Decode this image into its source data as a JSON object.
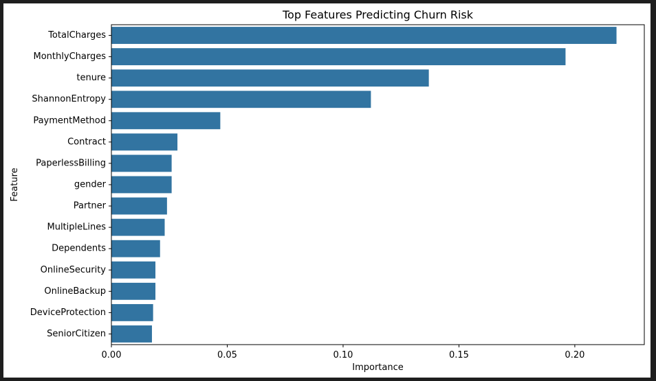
{
  "chart_data": {
    "type": "bar",
    "orientation": "horizontal",
    "title": "Top Features Predicting Churn Risk",
    "xlabel": "Importance",
    "ylabel": "Feature",
    "categories": [
      "TotalCharges",
      "MonthlyCharges",
      "tenure",
      "ShannonEntropy",
      "PaymentMethod",
      "Contract",
      "PaperlessBilling",
      "gender",
      "Partner",
      "MultipleLines",
      "Dependents",
      "OnlineSecurity",
      "OnlineBackup",
      "DeviceProtection",
      "SeniorCitizen"
    ],
    "values": [
      0.218,
      0.196,
      0.137,
      0.112,
      0.047,
      0.0285,
      0.026,
      0.026,
      0.024,
      0.023,
      0.021,
      0.019,
      0.019,
      0.018,
      0.0175
    ],
    "xlim": [
      0,
      0.23
    ],
    "xticks": [
      "0.00",
      "0.05",
      "0.10",
      "0.15",
      "0.20"
    ],
    "grid": false,
    "bar_color": "#3274a1"
  }
}
